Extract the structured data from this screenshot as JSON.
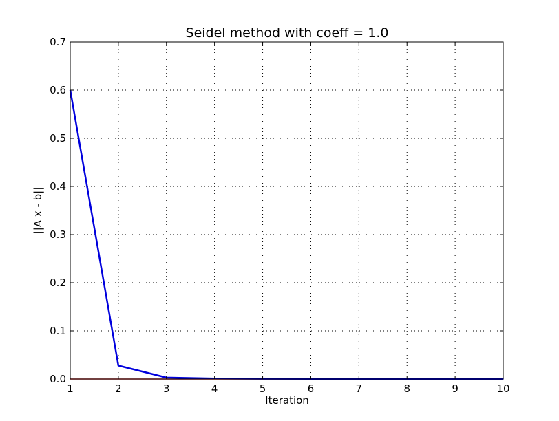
{
  "chart_data": {
    "type": "line",
    "title": "Seidel method with coeff = 1.0",
    "xlabel": "Iteration",
    "ylabel": "||A x - b||",
    "xlim": [
      1,
      10
    ],
    "ylim": [
      0,
      0.7
    ],
    "x_ticks": [
      "1",
      "2",
      "3",
      "4",
      "5",
      "6",
      "7",
      "8",
      "9",
      "10"
    ],
    "y_ticks": [
      "0.0",
      "0.1",
      "0.2",
      "0.3",
      "0.4",
      "0.5",
      "0.6",
      "0.7"
    ],
    "grid": true,
    "legend": "none",
    "series": [
      {
        "color": "#0000dd",
        "x": [
          1,
          2,
          3,
          4,
          5,
          6,
          7,
          8,
          9,
          10
        ],
        "y": [
          0.6,
          0.028,
          0.003,
          0.001,
          0.0005,
          0.0003,
          0.0002,
          0.0001,
          0.0001,
          0.0001
        ]
      }
    ],
    "baseline_color": "#cc0000"
  }
}
